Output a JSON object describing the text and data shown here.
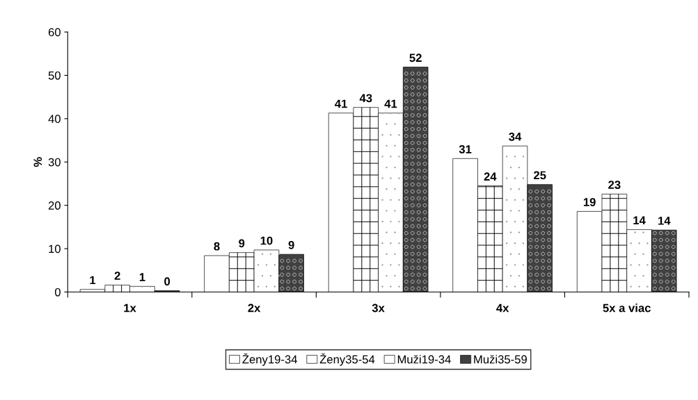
{
  "chart_data": {
    "type": "bar",
    "ylabel": "%",
    "categories": [
      "1x",
      "2x",
      "3x",
      "4x",
      "5x a viac"
    ],
    "series": [
      {
        "name": "Ženy19-34",
        "color": "#ffffff",
        "values": [
          0.6,
          8.4,
          41.3,
          30.8,
          18.6
        ],
        "value_labels": [
          "1",
          "8",
          "41",
          "31",
          "19"
        ]
      },
      {
        "name": "Ženy35-54",
        "color": "#ffffff",
        "values": [
          1.6,
          9.1,
          42.6,
          24.5,
          22.6
        ],
        "value_labels": [
          "2",
          "9",
          "43",
          "24",
          "23"
        ]
      },
      {
        "name": "Muži19-34",
        "color": "#ffffff",
        "values": [
          1.3,
          9.7,
          41.3,
          33.7,
          14.4
        ],
        "value_labels": [
          "1",
          "10",
          "41",
          "34",
          "14"
        ]
      },
      {
        "name": "Muži35-59",
        "color": "#404040",
        "values": [
          0.3,
          8.7,
          51.9,
          24.8,
          14.3
        ],
        "value_labels": [
          "0",
          "9",
          "52",
          "25",
          "14"
        ]
      }
    ],
    "ylim": [
      0,
      60
    ],
    "yticks": [
      0,
      10,
      20,
      30,
      40,
      50,
      60
    ],
    "grid": false,
    "legend": "bottom"
  }
}
